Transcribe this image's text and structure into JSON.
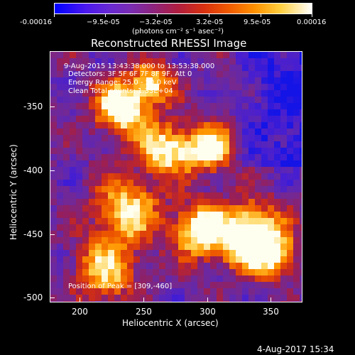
{
  "colorbar": {
    "tick_labels": [
      "-0.00016",
      "−9.5e-05",
      "−3.2e-05",
      "3.2e-05",
      "9.5e-05",
      "0.00016"
    ],
    "units": "(photons cm⁻² s⁻¹ asec⁻²)"
  },
  "title": "Reconstructed RHESSI Image",
  "info": {
    "time_range": "9-Aug-2015 13:43:38.000 to 13:53:38.000",
    "detectors": "Detectors: 3F 5F 6F 7F 8F 9F, Att 0",
    "energy": "Energy Range: 25.0 - 50.0 keV",
    "clean": "Clean    Total counts: 1.33E+04",
    "peak": "Position of Peak = [309,-460]"
  },
  "axes": {
    "xlabel": "Heliocentric X (arcsec)",
    "ylabel": "Heliocentric Y (arcsec)",
    "xticks": [
      "200",
      "250",
      "300",
      "350"
    ],
    "yticks": [
      "-350",
      "-400",
      "-450",
      "-500"
    ]
  },
  "footer": {
    "timestamp": "4-Aug-2017 15:34"
  },
  "palette": {
    "low": "#0000ff",
    "mid": "#8c2480",
    "high": "#ffffff"
  }
}
